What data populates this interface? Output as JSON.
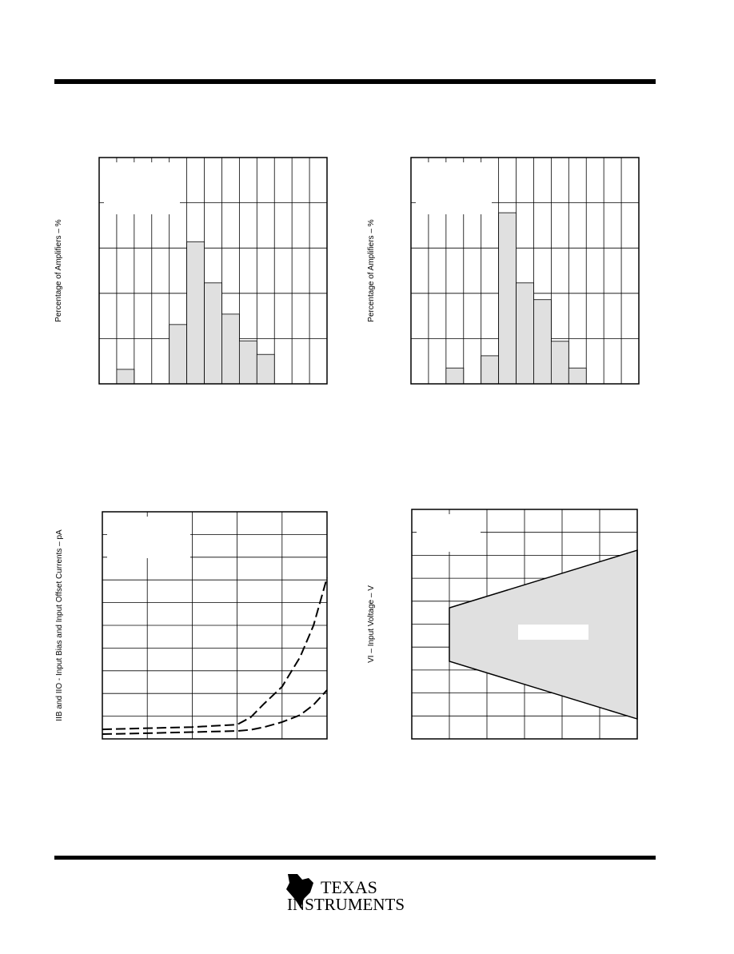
{
  "chart_data": [
    {
      "type": "bar",
      "ylabel": "Percentage of Amplifiers – %",
      "categories": [
        null,
        null,
        null,
        null,
        null,
        null,
        null,
        null,
        null,
        null,
        null,
        null,
        null
      ],
      "values": [
        0,
        0.32,
        0,
        0,
        1.31,
        3.14,
        2.23,
        1.54,
        0.95,
        0.65,
        0,
        0,
        0
      ],
      "color": "#e0e0e0",
      "ylim": [
        0,
        5
      ],
      "yticks": [
        0,
        1,
        2,
        3,
        4,
        5
      ],
      "grid": true
    },
    {
      "type": "bar",
      "ylabel": "Percentage of Amplifiers – %",
      "categories": [
        null,
        null,
        null,
        null,
        null,
        null,
        null,
        null,
        null,
        null,
        null,
        null,
        null
      ],
      "values": [
        0,
        0,
        0.35,
        0,
        0.62,
        3.78,
        2.23,
        1.86,
        0.94,
        0.35,
        0,
        0,
        0
      ],
      "color": "#e0e0e0",
      "ylim": [
        0,
        5
      ],
      "yticks": [
        0,
        1,
        2,
        3,
        4,
        5
      ],
      "grid": true
    },
    {
      "type": "line",
      "ylabel": "IIB and IIO - Input Bias and Input Offset Currents – pA",
      "x": [
        0,
        1,
        2,
        3,
        3.3,
        3.6,
        4,
        4.4,
        4.7,
        5
      ],
      "series": [
        {
          "color": "#000000",
          "values": [
            0.42,
            0.47,
            0.52,
            0.63,
            0.95,
            1.55,
            2.3,
            3.6,
            5.0,
            7.1
          ]
        },
        {
          "color": "#000000",
          "values": [
            0.21,
            0.25,
            0.3,
            0.35,
            0.4,
            0.52,
            0.74,
            1.05,
            1.5,
            2.15
          ]
        }
      ],
      "xlim": [
        0,
        5
      ],
      "xticks": [
        0,
        1,
        2,
        3,
        4,
        5
      ],
      "ylim": [
        0,
        10
      ],
      "yticks": [
        0,
        1,
        2,
        3,
        4,
        5,
        6,
        7,
        8,
        9,
        10
      ],
      "grid": true
    },
    {
      "type": "area",
      "ylabel": "VI – Input Voltage – V",
      "x": [
        1,
        6
      ],
      "series": [
        {
          "color": "#000000",
          "values": [
            5.71,
            8.22
          ]
        },
        {
          "color": "#000000",
          "values": [
            3.38,
            0.87
          ]
        }
      ],
      "fill": "#e0e0e0",
      "xlim": [
        0,
        6
      ],
      "xticks": [
        0,
        1,
        2,
        3,
        4,
        5,
        6
      ],
      "ylim": [
        0,
        10
      ],
      "yticks": [
        0,
        1,
        2,
        3,
        4,
        5,
        6,
        7,
        8,
        9,
        10
      ],
      "grid": true
    }
  ],
  "footer": {
    "logo_line1": "TEXAS",
    "logo_line2": "INSTRUMENTS"
  }
}
